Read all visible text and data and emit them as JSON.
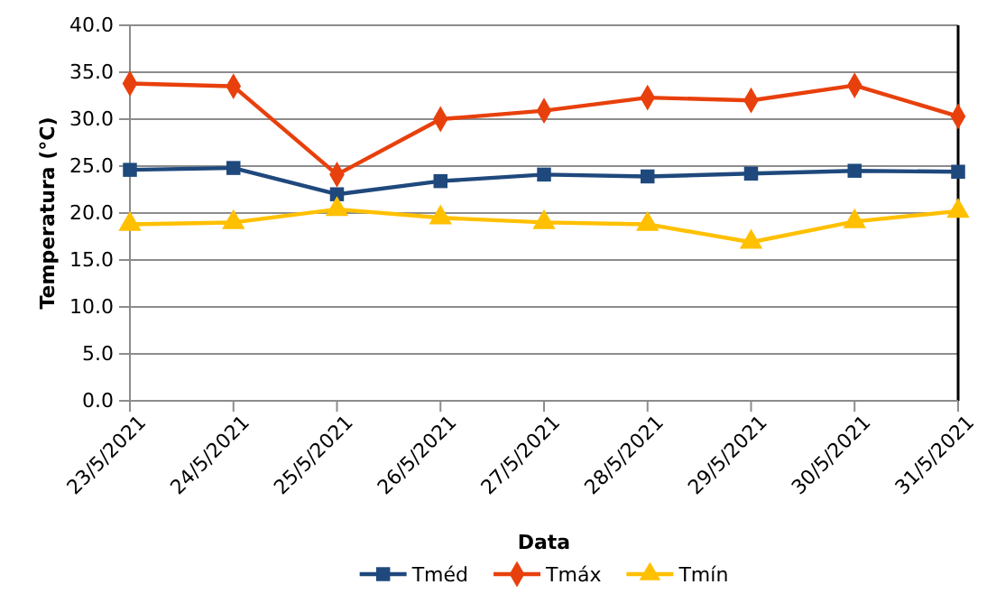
{
  "chart_data": {
    "type": "line",
    "xlabel": "Data",
    "ylabel": "Temperatura (°C)",
    "categories": [
      "23/5/2021",
      "24/5/2021",
      "25/5/2021",
      "26/5/2021",
      "27/5/2021",
      "28/5/2021",
      "29/5/2021",
      "30/5/2021",
      "31/5/2021"
    ],
    "series": [
      {
        "name": "Tméd",
        "color": "#1f497d",
        "marker": "square",
        "values": [
          24.6,
          24.8,
          22.0,
          23.4,
          24.1,
          23.9,
          24.2,
          24.5,
          24.4
        ]
      },
      {
        "name": "Tmáx",
        "color": "#e8400c",
        "marker": "diamond",
        "values": [
          33.8,
          33.5,
          24.1,
          30.0,
          30.9,
          32.3,
          32.0,
          33.6,
          30.3
        ]
      },
      {
        "name": "Tmín",
        "color": "#ffc000",
        "marker": "triangle",
        "values": [
          18.8,
          19.0,
          20.4,
          19.5,
          19.0,
          18.8,
          16.9,
          19.1,
          20.2
        ]
      }
    ],
    "ylim": [
      0,
      40
    ],
    "yticks": [
      {
        "value": 0,
        "label": "0.0"
      },
      {
        "value": 5,
        "label": "5.0"
      },
      {
        "value": 10,
        "label": "10.0"
      },
      {
        "value": 15,
        "label": "15.0"
      },
      {
        "value": 20,
        "label": "20.0"
      },
      {
        "value": 25,
        "label": "25.0"
      },
      {
        "value": 30,
        "label": "30.0"
      },
      {
        "value": 35,
        "label": "35.0"
      },
      {
        "value": 40,
        "label": "40.0"
      }
    ],
    "grid": "y",
    "legend": "bottom",
    "line_style": "solid"
  }
}
